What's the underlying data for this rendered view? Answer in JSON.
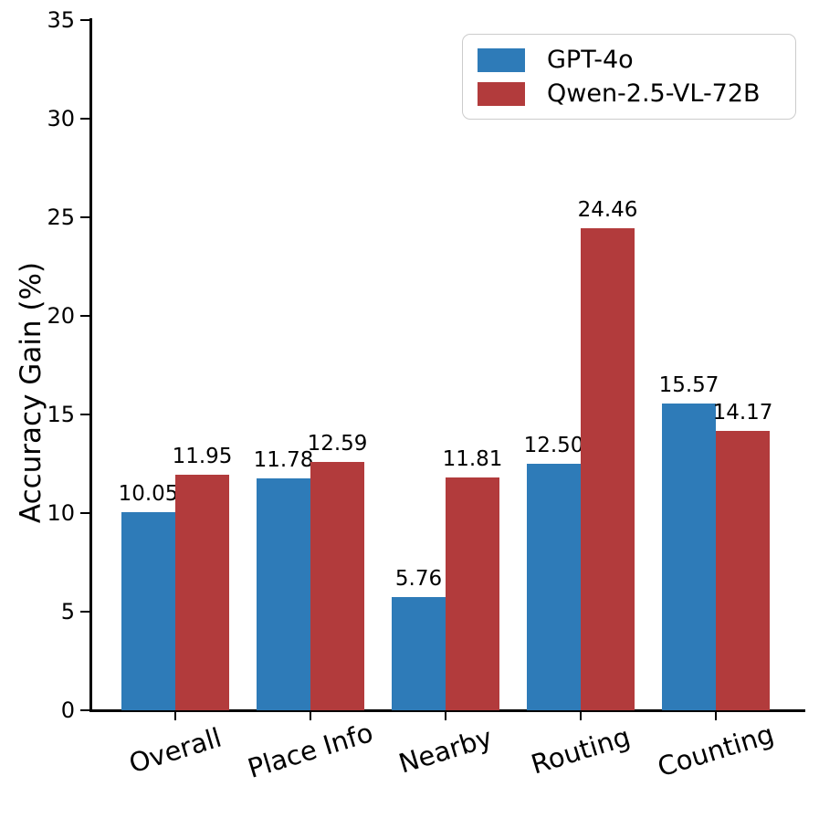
{
  "chart_data": {
    "type": "bar",
    "variant": "grouped",
    "title": "",
    "ylabel": "Accuracy Gain (%)",
    "xlabel": "",
    "ylim": [
      0,
      35
    ],
    "yticks": [
      0,
      5,
      10,
      15,
      20,
      25,
      30,
      35
    ],
    "grid": false,
    "legend_position": "upper right",
    "categories": [
      "Overall",
      "Place Info",
      "Nearby",
      "Routing",
      "Counting"
    ],
    "series": [
      {
        "name": "GPT-4o",
        "color": "#2e7bb8",
        "values": [
          10.05,
          11.78,
          5.76,
          12.5,
          15.57
        ],
        "labels": [
          "10.05",
          "11.78",
          "5.76",
          "12.50",
          "15.57"
        ]
      },
      {
        "name": "Qwen-2.5-VL-72B",
        "color": "#b23b3c",
        "values": [
          11.95,
          12.59,
          11.81,
          24.46,
          14.17
        ],
        "labels": [
          "11.95",
          "12.59",
          "11.81",
          "24.46",
          "14.17"
        ]
      }
    ]
  }
}
